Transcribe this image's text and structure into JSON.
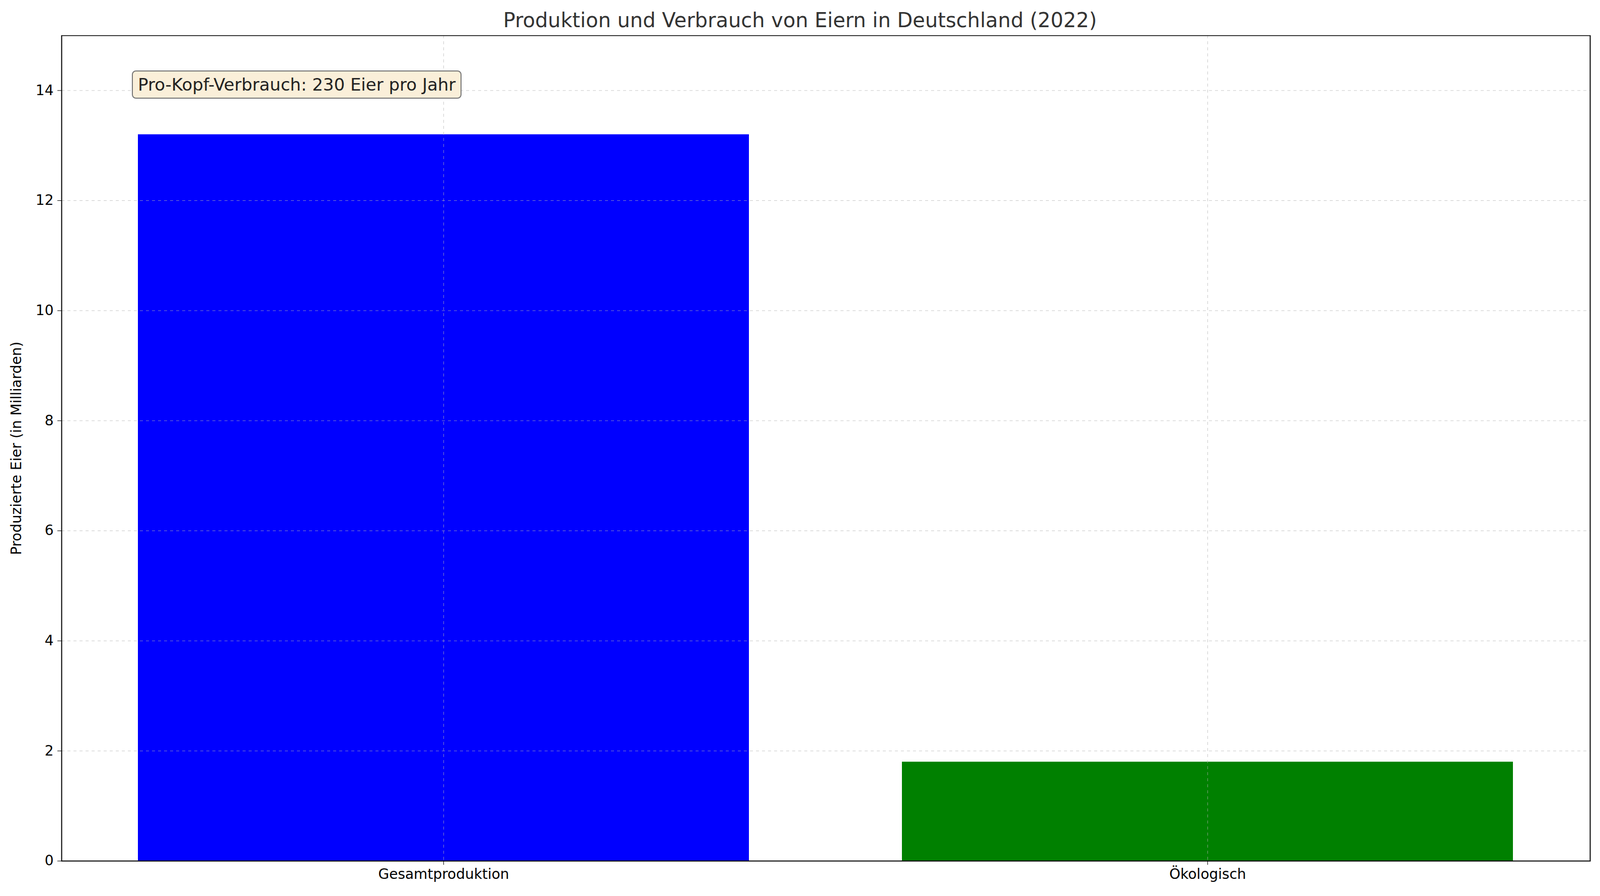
{
  "chart_data": {
    "type": "bar",
    "title": "Produktion und Verbrauch von Eiern in Deutschland (2022)",
    "y_label": "Produzierte Eier (in Milliarden)",
    "annotation": "Pro-Kopf-Verbrauch: 230 Eier pro Jahr",
    "categories": [
      "Gesamtproduktion",
      "Ökologisch"
    ],
    "values": [
      13.2,
      1.8
    ],
    "colors": [
      "#0000ff",
      "#008000"
    ],
    "ylim": [
      0,
      15
    ],
    "yticks": [
      0,
      2,
      4,
      6,
      8,
      10,
      12,
      14
    ],
    "grid": true
  }
}
